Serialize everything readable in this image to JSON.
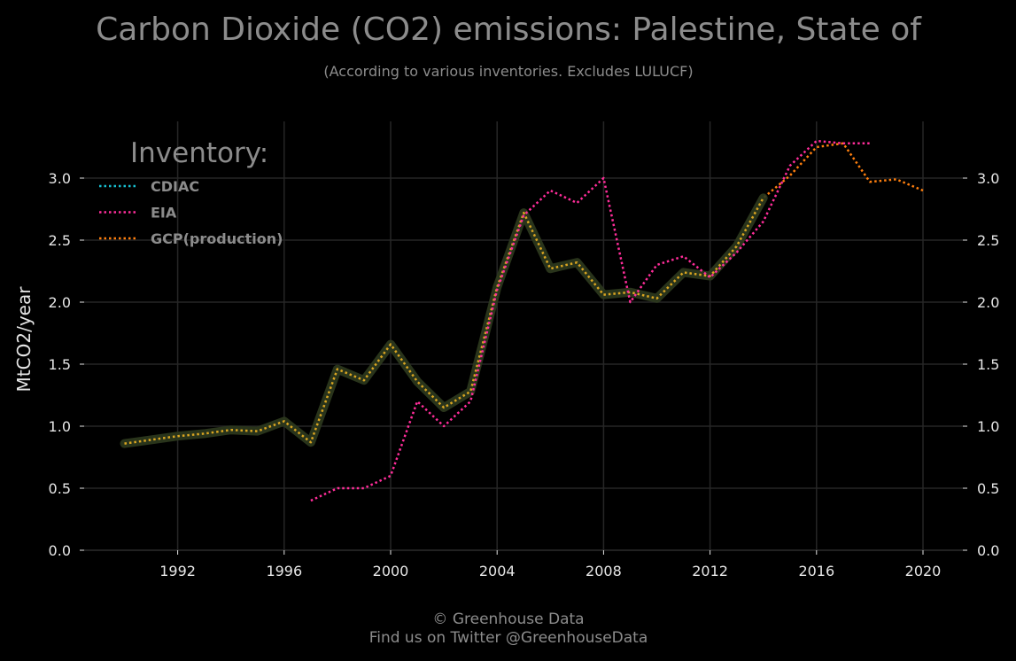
{
  "chart_data": {
    "type": "line",
    "title": "Carbon Dioxide (CO2) emissions: Palestine, State of",
    "subtitle": "(According to various inventories. Excludes LULUCF)",
    "xlabel": "",
    "ylabel": "MtCO2/year",
    "xlim": [
      1989,
      2021.5
    ],
    "ylim": [
      0,
      3.45
    ],
    "x_ticks": [
      1992,
      1996,
      2000,
      2004,
      2008,
      2012,
      2016,
      2020
    ],
    "x_tick_labels": [
      "1992",
      "1996",
      "2000",
      "2004",
      "2008",
      "2012",
      "2016",
      "2020"
    ],
    "y_ticks": [
      0.0,
      0.5,
      1.0,
      1.5,
      2.0,
      2.5,
      3.0
    ],
    "y_tick_labels": [
      "0.0",
      "0.5",
      "1.0",
      "1.5",
      "2.0",
      "2.5",
      "3.0"
    ],
    "grid": true,
    "legend": {
      "title": "Inventory:",
      "position": "top-left"
    },
    "series": [
      {
        "name": "CDIAC",
        "color": "#17becf",
        "x": [
          1990,
          1991,
          1992,
          1993,
          1994,
          1995,
          1996,
          1997,
          1998,
          1999,
          2000,
          2001,
          2002,
          2003,
          2004,
          2005,
          2006,
          2007,
          2008,
          2009,
          2010,
          2011,
          2012,
          2013,
          2014
        ],
        "y": [
          0.86,
          0.89,
          0.92,
          0.94,
          0.97,
          0.96,
          1.04,
          0.87,
          1.46,
          1.37,
          1.66,
          1.36,
          1.15,
          1.28,
          2.12,
          2.72,
          2.27,
          2.32,
          2.06,
          2.08,
          2.03,
          2.24,
          2.21,
          2.45,
          2.84
        ]
      },
      {
        "name": "EIA",
        "color": "#ff2d9a",
        "x": [
          1997,
          1998,
          1999,
          2000,
          2001,
          2002,
          2003,
          2004,
          2005,
          2006,
          2007,
          2008,
          2009,
          2010,
          2011,
          2012,
          2013,
          2014,
          2015,
          2016,
          2017,
          2018
        ],
        "y": [
          0.4,
          0.5,
          0.5,
          0.6,
          1.2,
          1.0,
          1.2,
          2.1,
          2.7,
          2.9,
          2.8,
          3.0,
          2.0,
          2.3,
          2.37,
          2.2,
          2.4,
          2.65,
          3.1,
          3.3,
          3.28,
          3.28
        ]
      },
      {
        "name": "GCP(production)",
        "color": "#ff7f0e",
        "x": [
          1990,
          1991,
          1992,
          1993,
          1994,
          1995,
          1996,
          1997,
          1998,
          1999,
          2000,
          2001,
          2002,
          2003,
          2004,
          2005,
          2006,
          2007,
          2008,
          2009,
          2010,
          2011,
          2012,
          2013,
          2014,
          2015,
          2016,
          2017,
          2018,
          2019,
          2020
        ],
        "y": [
          0.86,
          0.89,
          0.92,
          0.94,
          0.97,
          0.96,
          1.04,
          0.87,
          1.46,
          1.37,
          1.66,
          1.36,
          1.15,
          1.28,
          2.12,
          2.72,
          2.27,
          2.32,
          2.06,
          2.08,
          2.03,
          2.24,
          2.21,
          2.45,
          2.84,
          3.02,
          3.25,
          3.28,
          2.97,
          2.99,
          2.9
        ]
      }
    ],
    "footer": [
      "© Greenhouse Data",
      "Find us on Twitter @GreenhouseData"
    ]
  }
}
